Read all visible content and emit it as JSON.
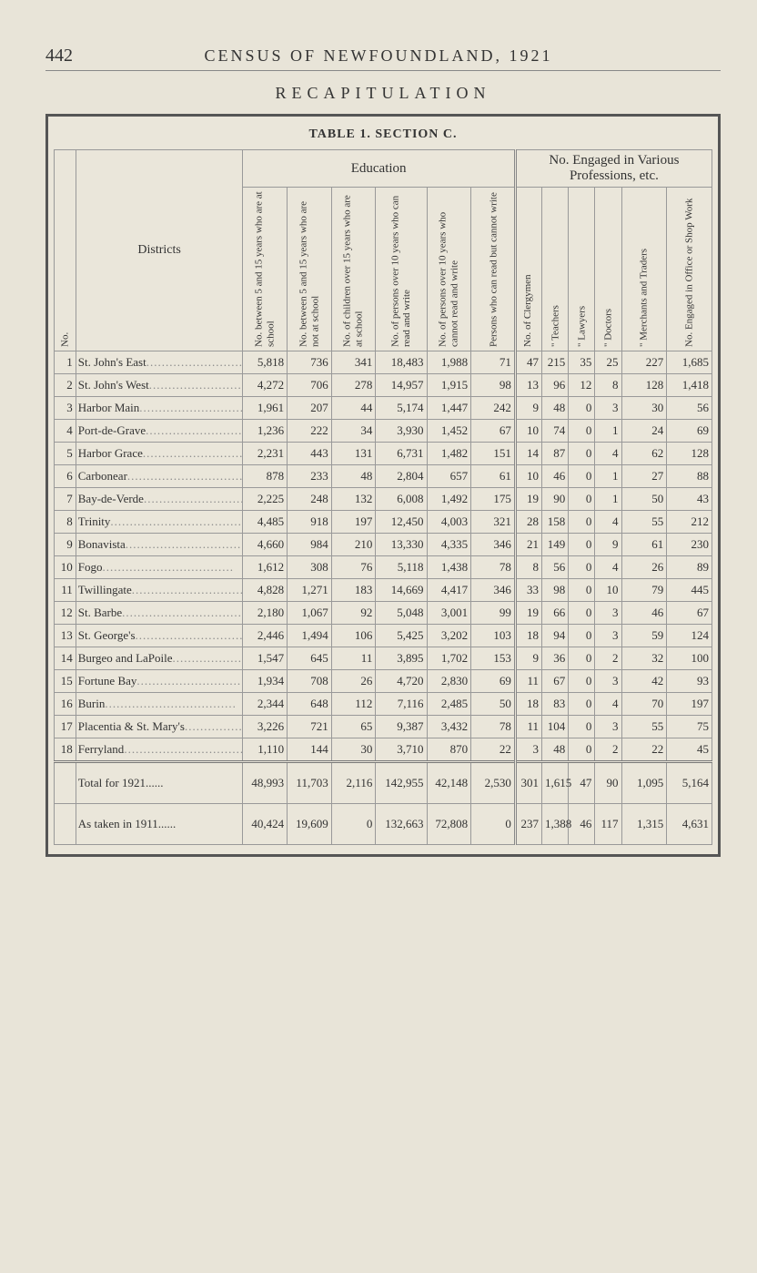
{
  "page_number": "442",
  "page_title": "CENSUS OF NEWFOUNDLAND, 1921",
  "recapitulation": "RECAPITULATION",
  "table_title": "TABLE 1.   SECTION C.",
  "group_headers": {
    "education": "Education",
    "professions": "No. Engaged in Various Professions, etc."
  },
  "col_headers": {
    "no": "No.",
    "districts": "Districts",
    "edu": [
      "No. between 5 and 15 years who are at school",
      "No. between 5 and 15 years who are not at school",
      "No. of children over 15 years who are at school",
      "No. of persons over 10 years who can read and write",
      "No. of persons over 10 years who cannot read and write",
      "Persons who can read but cannot write"
    ],
    "prof": [
      "No. of Clergymen",
      "\"  Teachers",
      "\"  Lawyers",
      "\"  Doctors",
      "\"  Merchants and Traders",
      "No. Engaged in Office or Shop Work"
    ]
  },
  "rows": [
    {
      "n": "1",
      "d": "St. John's East",
      "c": [
        "5,818",
        "736",
        "341",
        "18,483",
        "1,988",
        "71",
        "47",
        "215",
        "35",
        "25",
        "227",
        "1,685"
      ]
    },
    {
      "n": "2",
      "d": "St. John's West",
      "c": [
        "4,272",
        "706",
        "278",
        "14,957",
        "1,915",
        "98",
        "13",
        "96",
        "12",
        "8",
        "128",
        "1,418"
      ]
    },
    {
      "n": "3",
      "d": "Harbor Main",
      "c": [
        "1,961",
        "207",
        "44",
        "5,174",
        "1,447",
        "242",
        "9",
        "48",
        "0",
        "3",
        "30",
        "56"
      ]
    },
    {
      "n": "4",
      "d": "Port-de-Grave",
      "c": [
        "1,236",
        "222",
        "34",
        "3,930",
        "1,452",
        "67",
        "10",
        "74",
        "0",
        "1",
        "24",
        "69"
      ]
    },
    {
      "n": "5",
      "d": "Harbor Grace",
      "c": [
        "2,231",
        "443",
        "131",
        "6,731",
        "1,482",
        "151",
        "14",
        "87",
        "0",
        "4",
        "62",
        "128"
      ]
    },
    {
      "n": "6",
      "d": "Carbonear",
      "c": [
        "878",
        "233",
        "48",
        "2,804",
        "657",
        "61",
        "10",
        "46",
        "0",
        "1",
        "27",
        "88"
      ]
    },
    {
      "n": "7",
      "d": "Bay-de-Verde",
      "c": [
        "2,225",
        "248",
        "132",
        "6,008",
        "1,492",
        "175",
        "19",
        "90",
        "0",
        "1",
        "50",
        "43"
      ]
    },
    {
      "n": "8",
      "d": "Trinity",
      "c": [
        "4,485",
        "918",
        "197",
        "12,450",
        "4,003",
        "321",
        "28",
        "158",
        "0",
        "4",
        "55",
        "212"
      ]
    },
    {
      "n": "9",
      "d": "Bonavista",
      "c": [
        "4,660",
        "984",
        "210",
        "13,330",
        "4,335",
        "346",
        "21",
        "149",
        "0",
        "9",
        "61",
        "230"
      ]
    },
    {
      "n": "10",
      "d": "Fogo",
      "c": [
        "1,612",
        "308",
        "76",
        "5,118",
        "1,438",
        "78",
        "8",
        "56",
        "0",
        "4",
        "26",
        "89"
      ]
    },
    {
      "n": "11",
      "d": "Twillingate",
      "c": [
        "4,828",
        "1,271",
        "183",
        "14,669",
        "4,417",
        "346",
        "33",
        "98",
        "0",
        "10",
        "79",
        "445"
      ]
    },
    {
      "n": "12",
      "d": "St. Barbe",
      "c": [
        "2,180",
        "1,067",
        "92",
        "5,048",
        "3,001",
        "99",
        "19",
        "66",
        "0",
        "3",
        "46",
        "67"
      ]
    },
    {
      "n": "13",
      "d": "St. George's",
      "c": [
        "2,446",
        "1,494",
        "106",
        "5,425",
        "3,202",
        "103",
        "18",
        "94",
        "0",
        "3",
        "59",
        "124"
      ]
    },
    {
      "n": "14",
      "d": "Burgeo and LaPoile",
      "c": [
        "1,547",
        "645",
        "11",
        "3,895",
        "1,702",
        "153",
        "9",
        "36",
        "0",
        "2",
        "32",
        "100"
      ]
    },
    {
      "n": "15",
      "d": "Fortune Bay",
      "c": [
        "1,934",
        "708",
        "26",
        "4,720",
        "2,830",
        "69",
        "11",
        "67",
        "0",
        "3",
        "42",
        "93"
      ]
    },
    {
      "n": "16",
      "d": "Burin",
      "c": [
        "2,344",
        "648",
        "112",
        "7,116",
        "2,485",
        "50",
        "18",
        "83",
        "0",
        "4",
        "70",
        "197"
      ]
    },
    {
      "n": "17",
      "d": "Placentia & St. Mary's",
      "c": [
        "3,226",
        "721",
        "65",
        "9,387",
        "3,432",
        "78",
        "11",
        "104",
        "0",
        "3",
        "55",
        "75"
      ]
    },
    {
      "n": "18",
      "d": "Ferryland",
      "c": [
        "1,110",
        "144",
        "30",
        "3,710",
        "870",
        "22",
        "3",
        "48",
        "0",
        "2",
        "22",
        "45"
      ]
    }
  ],
  "total_1921": {
    "label": "Total for 1921",
    "c": [
      "48,993",
      "11,703",
      "2,116",
      "142,955",
      "42,148",
      "2,530",
      "301",
      "1,615",
      "47",
      "90",
      "1,095",
      "5,164"
    ]
  },
  "as_1911": {
    "label": "As taken in 1911",
    "c": [
      "40,424",
      "19,609",
      "0",
      "132,663",
      "72,808",
      "0",
      "237",
      "1,388",
      "46",
      "117",
      "1,315",
      "4,631"
    ]
  }
}
